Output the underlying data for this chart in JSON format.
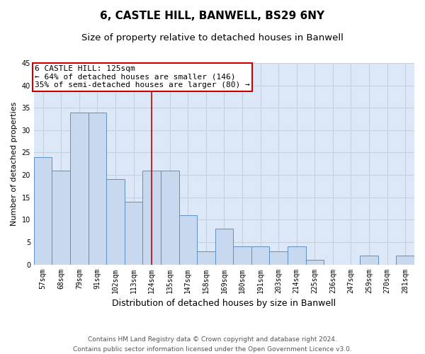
{
  "title1": "6, CASTLE HILL, BANWELL, BS29 6NY",
  "title2": "Size of property relative to detached houses in Banwell",
  "xlabel": "Distribution of detached houses by size in Banwell",
  "ylabel": "Number of detached properties",
  "categories": [
    "57sqm",
    "68sqm",
    "79sqm",
    "91sqm",
    "102sqm",
    "113sqm",
    "124sqm",
    "135sqm",
    "147sqm",
    "158sqm",
    "169sqm",
    "180sqm",
    "191sqm",
    "203sqm",
    "214sqm",
    "225sqm",
    "236sqm",
    "247sqm",
    "259sqm",
    "270sqm",
    "281sqm"
  ],
  "values": [
    24,
    21,
    34,
    34,
    19,
    14,
    21,
    21,
    11,
    3,
    8,
    4,
    4,
    3,
    4,
    1,
    0,
    0,
    2,
    0,
    2
  ],
  "bar_color": "#c8d8ef",
  "bar_edge_color": "#6090c0",
  "annotation_line1": "6 CASTLE HILL: 125sqm",
  "annotation_line2": "← 64% of detached houses are smaller (146)",
  "annotation_line3": "35% of semi-detached houses are larger (80) →",
  "annotation_box_color": "#ffffff",
  "annotation_box_edge": "#cc0000",
  "vline_color": "#cc0000",
  "vline_x_index": 6,
  "ylim": [
    0,
    45
  ],
  "yticks": [
    0,
    5,
    10,
    15,
    20,
    25,
    30,
    35,
    40,
    45
  ],
  "grid_color": "#c8d0dc",
  "background_color": "#dce8f8",
  "footer1": "Contains HM Land Registry data © Crown copyright and database right 2024.",
  "footer2": "Contains public sector information licensed under the Open Government Licence v3.0.",
  "title1_fontsize": 11,
  "title2_fontsize": 9.5,
  "xlabel_fontsize": 9,
  "ylabel_fontsize": 8,
  "tick_fontsize": 7,
  "annotation_fontsize": 8,
  "footer_fontsize": 6.5
}
